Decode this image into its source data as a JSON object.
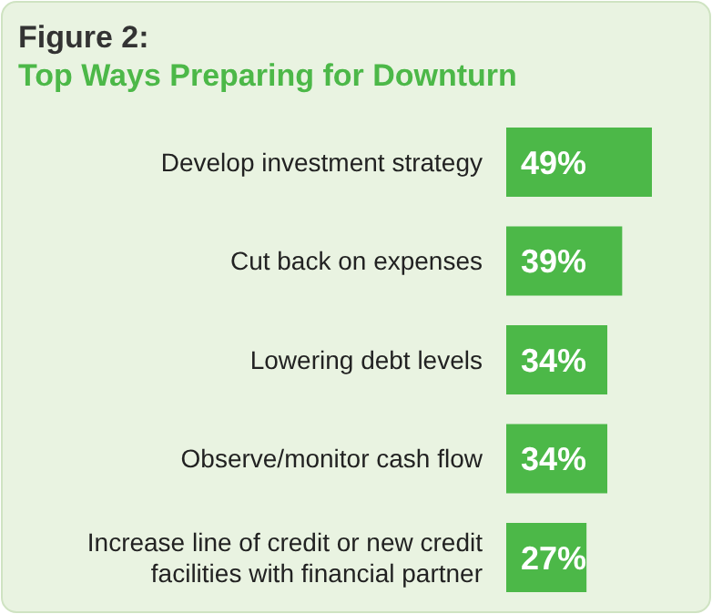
{
  "chart_data": {
    "type": "bar",
    "orientation": "horizontal",
    "title": "Figure 2:",
    "subtitle": "Top Ways Preparing for Downturn",
    "categories": [
      "Develop investment strategy",
      "Cut back on expenses",
      "Lowering debt levels",
      "Observe/monitor cash flow",
      "Increase line of credit or new credit facilities with financial partner"
    ],
    "values": [
      49,
      39,
      34,
      34,
      27
    ],
    "color": "#4cb848",
    "value_labels": [
      "49%",
      "39%",
      "34%",
      "34%",
      "27%"
    ]
  }
}
